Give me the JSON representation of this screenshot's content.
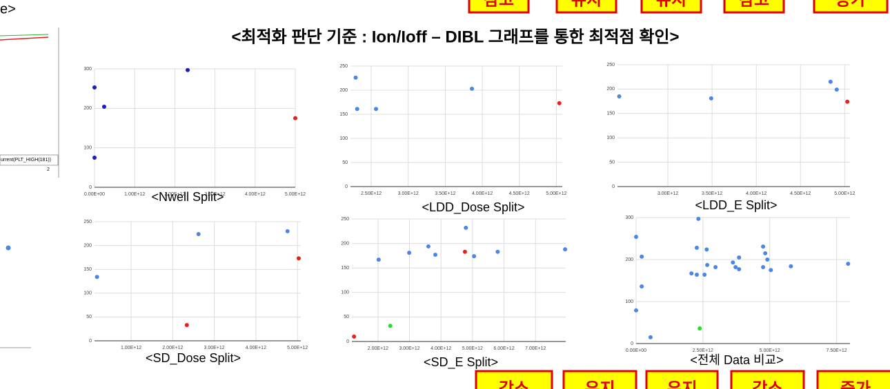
{
  "header": {
    "title": "<최적화 판단 기준 : Ion/Ioff – DIBL 그래프를 통한 최적점 확인>"
  },
  "top_labels": [
    "참고",
    "유지",
    "유지",
    "참고",
    "증가"
  ],
  "bottom_labels": [
    "감소",
    "유지",
    "유지",
    "감소",
    "증가"
  ],
  "left_fragment": {
    "title": "e>",
    "legend": "urrent(PLT_HIGH(181))",
    "tick": "2"
  },
  "chart_data": [
    {
      "type": "scatter",
      "title": "<Nwell Split>",
      "grid": true,
      "xlim": [
        0,
        5000000000000.0
      ],
      "ylim": [
        0,
        300
      ],
      "xticks": [
        {
          "value": 0,
          "label": "0.00E+00"
        },
        {
          "value": 1000000000000.0,
          "label": "1.00E+12"
        },
        {
          "value": 2000000000000.0,
          "label": "2.00E+12"
        },
        {
          "value": 3000000000000.0,
          "label": "3.00E+12"
        },
        {
          "value": 4000000000000.0,
          "label": "4.00E+12"
        },
        {
          "value": 5000000000000.0,
          "label": "5.00E+12"
        }
      ],
      "yticks": [
        0,
        100,
        200,
        300
      ],
      "series": [
        {
          "color": "#1a1ac8",
          "x": [
            0,
            240000000000.0,
            2320000000000.0,
            0
          ],
          "values": [
            253,
            204,
            297,
            75
          ]
        },
        {
          "color": "#e8201a",
          "x": [
            5000000000000.0
          ],
          "values": [
            175
          ]
        }
      ]
    },
    {
      "type": "scatter",
      "title": "<LDD_Dose Split>",
      "grid": true,
      "xlim": [
        2220000000000.0,
        5080000000000.0
      ],
      "ylim": [
        0,
        250
      ],
      "xticks": [
        {
          "value": 2500000000000.0,
          "label": "2.50E+12"
        },
        {
          "value": 3000000000000.0,
          "label": "3.00E+12"
        },
        {
          "value": 3500000000000.0,
          "label": "3.50E+12"
        },
        {
          "value": 4000000000000.0,
          "label": "4.00E+12"
        },
        {
          "value": 4500000000000.0,
          "label": "4.50E+12"
        },
        {
          "value": 5000000000000.0,
          "label": "5.00E+12"
        }
      ],
      "yticks": [
        0,
        50,
        100,
        150,
        200,
        250
      ],
      "series": [
        {
          "color": "#4a86e8",
          "x": [
            2290000000000.0,
            2310000000000.0,
            2565000000000.0,
            3860000000000.0
          ],
          "values": [
            226,
            161,
            161,
            203
          ]
        },
        {
          "color": "#e8201a",
          "x": [
            5040000000000.0
          ],
          "values": [
            173
          ]
        }
      ]
    },
    {
      "type": "scatter",
      "title": "<LDD_E Split>",
      "grid": true,
      "xlim": [
        2430000000000.0,
        5060000000000.0
      ],
      "ylim": [
        0,
        250
      ],
      "xticks": [
        {
          "value": 3000000000000.0,
          "label": "3.00E+12"
        },
        {
          "value": 3500000000000.0,
          "label": "3.50E+12"
        },
        {
          "value": 4000000000000.0,
          "label": "4.00E+12"
        },
        {
          "value": 4500000000000.0,
          "label": "4.50E+12"
        },
        {
          "value": 5000000000000.0,
          "label": "5.00E+12"
        }
      ],
      "yticks": [
        0,
        50,
        100,
        150,
        200,
        250
      ],
      "series": [
        {
          "color": "#4a86e8",
          "x": [
            2450000000000.0,
            3490000000000.0,
            4840000000000.0,
            4910000000000.0
          ],
          "values": [
            185,
            181,
            215,
            199
          ]
        },
        {
          "color": "#e8201a",
          "x": [
            5030000000000.0
          ],
          "values": [
            174
          ]
        }
      ]
    },
    {
      "type": "scatter",
      "title": "<SD_Dose Split>",
      "grid": true,
      "xlim": [
        120000000000.0,
        5080000000000.0
      ],
      "ylim": [
        0,
        250
      ],
      "xticks": [
        {
          "value": 1000000000000.0,
          "label": "1.00E+12"
        },
        {
          "value": 2000000000000.0,
          "label": "2.00E+12"
        },
        {
          "value": 3000000000000.0,
          "label": "3.00E+12"
        },
        {
          "value": 4000000000000.0,
          "label": "4.00E+12"
        },
        {
          "value": 5000000000000.0,
          "label": "5.00E+12"
        }
      ],
      "yticks": [
        0,
        50,
        100,
        150,
        200,
        250
      ],
      "series": [
        {
          "color": "#4a86e8",
          "x": [
            180000000000.0,
            2620000000000.0,
            4760000000000.0
          ],
          "values": [
            134,
            224,
            230
          ]
        },
        {
          "color": "#e8201a",
          "x": [
            2340000000000.0,
            5030000000000.0
          ],
          "values": [
            33,
            173
          ]
        }
      ]
    },
    {
      "type": "scatter",
      "title": "<SD_E Split>",
      "grid": true,
      "xlim": [
        1170000000000.0,
        7960000000000.0
      ],
      "ylim": [
        0,
        250
      ],
      "xticks": [
        {
          "value": 2000000000000.0,
          "label": "2.00E+12"
        },
        {
          "value": 3000000000000.0,
          "label": "3.00E+12"
        },
        {
          "value": 4000000000000.0,
          "label": "4.00E+12"
        },
        {
          "value": 5000000000000.0,
          "label": "5.00E+12"
        },
        {
          "value": 6000000000000.0,
          "label": "6.00E+12"
        },
        {
          "value": 7000000000000.0,
          "label": "7.00E+12"
        }
      ],
      "yticks": [
        0,
        50,
        100,
        150,
        200,
        250
      ],
      "series": [
        {
          "color": "#4a86e8",
          "x": [
            2020000000000.0,
            2990000000000.0,
            3600000000000.0,
            3820000000000.0,
            4790000000000.0,
            5050000000000.0,
            5800000000000.0,
            7940000000000.0
          ],
          "values": [
            167,
            181,
            194,
            177,
            232,
            174,
            183,
            188
          ]
        },
        {
          "color": "#e8201a",
          "x": [
            4760000000000.0,
            1240000000000.0
          ],
          "values": [
            183,
            10
          ]
        },
        {
          "color": "#22e022",
          "x": [
            2390000000000.0
          ],
          "values": [
            32
          ]
        }
      ]
    },
    {
      "type": "scatter",
      "title": "<전체 Data 비교>",
      "grid": true,
      "xlim": [
        0,
        8000000000000.0
      ],
      "ylim": [
        0,
        300
      ],
      "xticks": [
        {
          "value": 0,
          "label": "0.00E+00"
        },
        {
          "value": 2500000000000.0,
          "label": "2.50E+12"
        },
        {
          "value": 5000000000000.0,
          "label": "5.00E+12"
        },
        {
          "value": 7500000000000.0,
          "label": "7.50E+12"
        }
      ],
      "yticks": [
        0,
        100,
        200,
        300
      ],
      "series": [
        {
          "color": "#4a86e8",
          "x": [
            0,
            210000000000.0,
            210000000000.0,
            0,
            540000000000.0,
            2070000000000.0,
            2330000000000.0,
            2270000000000.0,
            2270000000000.0,
            2560000000000.0,
            2640000000000.0,
            2660000000000.0,
            2970000000000.0,
            3620000000000.0,
            3720000000000.0,
            3850000000000.0,
            3850000000000.0,
            4750000000000.0,
            4830000000000.0,
            4750000000000.0,
            4910000000000.0,
            5040000000000.0,
            5790000000000.0,
            7930000000000.0
          ],
          "values": [
            254,
            207,
            136,
            79,
            15,
            167,
            297,
            228,
            164,
            164,
            224,
            187,
            182,
            193,
            182,
            205,
            177,
            231,
            215,
            182,
            200,
            175,
            184,
            190
          ]
        },
        {
          "color": "#22e022",
          "x": [
            2380000000000.0
          ],
          "values": [
            36
          ]
        }
      ]
    }
  ]
}
